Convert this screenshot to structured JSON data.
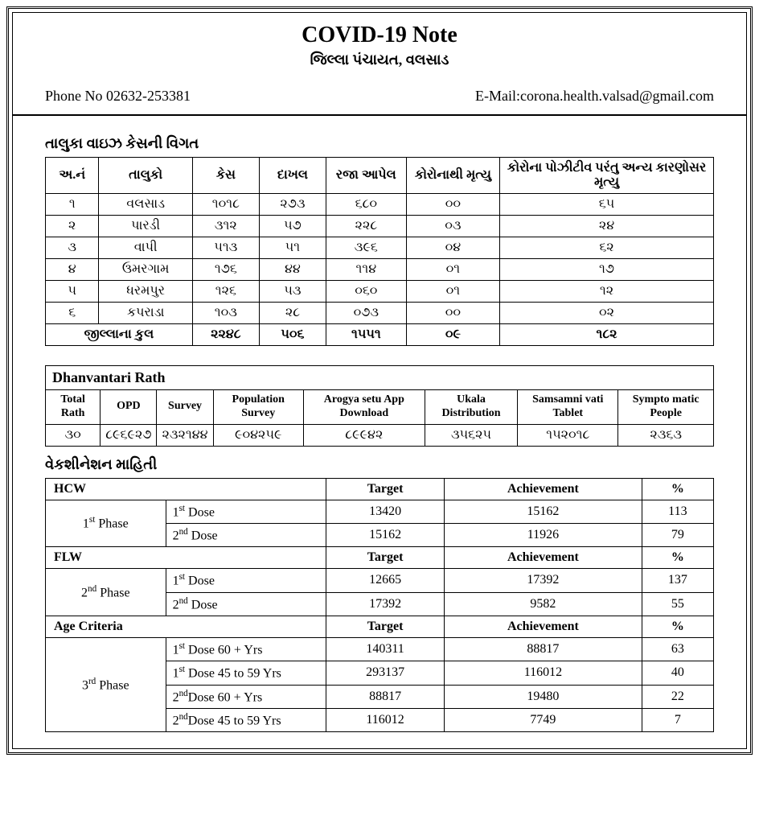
{
  "header": {
    "title": "COVID-19 Note",
    "subtitle": "જિલ્લા પંચાયત, વલસાડ",
    "phone_label": "Phone No 02632-253381",
    "email_label": "E-Mail:corona.health.valsad@gmail.com"
  },
  "taluka": {
    "section_title": "તાલુકા વાઇઝ કેસની વિગત",
    "columns": [
      "અ.નં",
      "તાલુકો",
      "કેસ",
      "દાખલ",
      "રજા આપેલ",
      "કોરોનાથી મૃત્યુ",
      "કોરોના પોઝીટીવ પરંતુ અન્ય કારણોસર મૃત્યુ"
    ],
    "rows": [
      [
        "૧",
        "વલસાડ",
        "૧૦૧૮",
        "૨૭૩",
        "૬૮૦",
        "૦૦",
        "૬૫"
      ],
      [
        "૨",
        "પારડી",
        "૩૧૨",
        "૫૭",
        "૨૨૮",
        "૦૩",
        "૨૪"
      ],
      [
        "૩",
        "વાપી",
        "૫૧૩",
        "૫૧",
        "૩૯૬",
        "૦૪",
        "૬૨"
      ],
      [
        "૪",
        "ઉમરગામ",
        "૧૭૬",
        "૪૪",
        "૧૧૪",
        "૦૧",
        "૧૭"
      ],
      [
        "૫",
        "ધરમપુર",
        "૧૨૬",
        "૫૩",
        "૦૬૦",
        "૦૧",
        "૧૨"
      ],
      [
        "૬",
        "કપરાડા",
        "૧૦૩",
        "૨૮",
        "૦૭૩",
        "૦૦",
        "૦૨"
      ]
    ],
    "total_label": "જીલ્લાના કુલ",
    "totals": [
      "૨૨૪૮",
      "૫૦૬",
      "૧૫૫૧",
      "૦૯",
      "૧૮૨"
    ]
  },
  "dhanvantari": {
    "title": "Dhanvantari  Rath",
    "columns": [
      "Total Rath",
      "OPD",
      "Survey",
      "Population Survey",
      "Arogya setu App Download",
      "Ukala Distribution",
      "Samsamni vati Tablet",
      "Sympto matic People"
    ],
    "row": [
      "૩૦",
      "૮૯૬૯૨૭",
      "૨૩૨૧૪૪",
      "૯૦૪૨૫૯",
      "૮૯૯૪૨",
      "૩૫૬૨૫",
      "૧૫૨૦૧૮",
      "૨૩૬૩"
    ]
  },
  "vaccination": {
    "section_title": "વેકશીનેશન માહિતી",
    "col_target": "Target",
    "col_achievement": "Achievement",
    "col_percent": "%",
    "hcw_label": "HCW",
    "flw_label": "FLW",
    "age_label": "Age Criteria",
    "phase1": "1",
    "phase1_suffix": " Phase",
    "phase2": "2",
    "phase2_suffix": " Phase",
    "phase3": "3",
    "phase3_suffix": " Phase",
    "dose1_label": "1",
    "dose1_suffix": " Dose",
    "dose2_label": "2",
    "dose2_suffix": " Dose",
    "dose1_60": "1",
    "dose1_60_suffix": " Dose 60 + Yrs",
    "dose1_45": "1",
    "dose1_45_suffix": " Dose 45 to 59 Yrs",
    "dose2_60": "2",
    "dose2_60_suffix": "Dose 60 + Yrs",
    "dose2_45": "2",
    "dose2_45_suffix": "Dose 45 to 59 Yrs",
    "hcw_rows": [
      [
        "13420",
        "15162",
        "113"
      ],
      [
        "15162",
        "11926",
        "79"
      ]
    ],
    "flw_rows": [
      [
        "12665",
        "17392",
        "137"
      ],
      [
        "17392",
        "9582",
        "55"
      ]
    ],
    "age_rows": [
      [
        "140311",
        "88817",
        "63"
      ],
      [
        "293137",
        "116012",
        "40"
      ],
      [
        "88817",
        "19480",
        "22"
      ],
      [
        "116012",
        "7749",
        "7"
      ]
    ]
  }
}
